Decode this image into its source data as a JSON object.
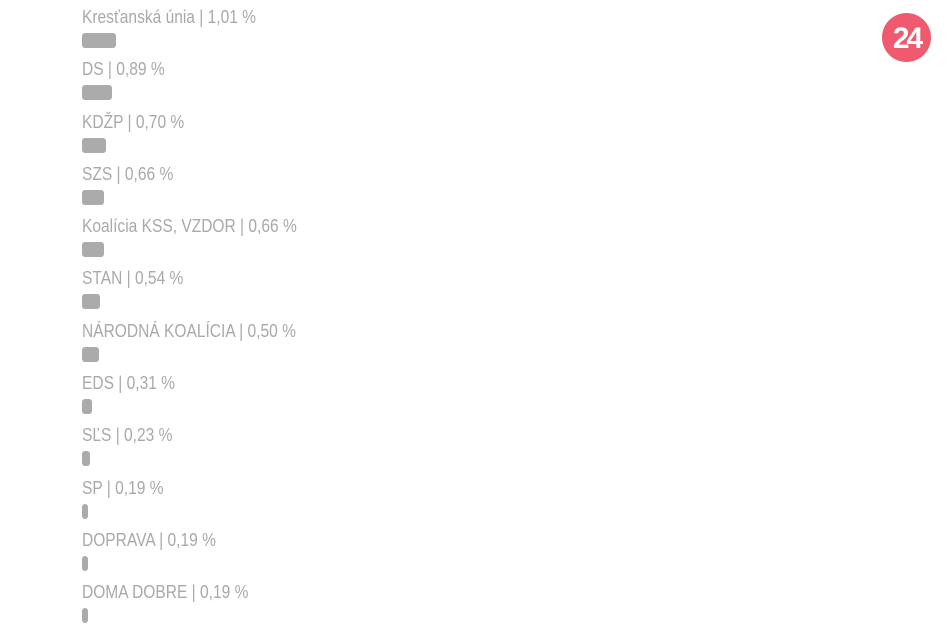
{
  "logo": {
    "text": "24",
    "color": "#ef5a6f"
  },
  "chart_data": {
    "type": "bar",
    "orientation": "horizontal",
    "bar_color": "#ababab",
    "unit": "%",
    "categories": [
      "Kresťanská únia",
      "DS",
      "KDŽP",
      "SZS",
      "Koalícia KSS, VZDOR",
      "STAN",
      "NÁRODNÁ KOALÍCIA",
      "EDS",
      "SĽS",
      "SP",
      "DOPRAVA",
      "DOMA DOBRE"
    ],
    "values": [
      1.01,
      0.89,
      0.7,
      0.66,
      0.66,
      0.54,
      0.5,
      0.31,
      0.23,
      0.19,
      0.19,
      0.19
    ],
    "labels": [
      "Kresťanská únia | 1,01 %",
      "DS | 0,89 %",
      "KDŽP | 0,70 %",
      "SZS | 0,66 %",
      "Koalícia KSS, VZDOR | 0,66 %",
      "STAN | 0,54 %",
      "NÁRODNÁ KOALÍCIA | 0,50 %",
      "EDS | 0,31 %",
      "SĽS | 0,23 %",
      "SP | 0,19 %",
      "DOPRAVA | 0,19 %",
      "DOMA DOBRE | 0,19 %"
    ]
  }
}
